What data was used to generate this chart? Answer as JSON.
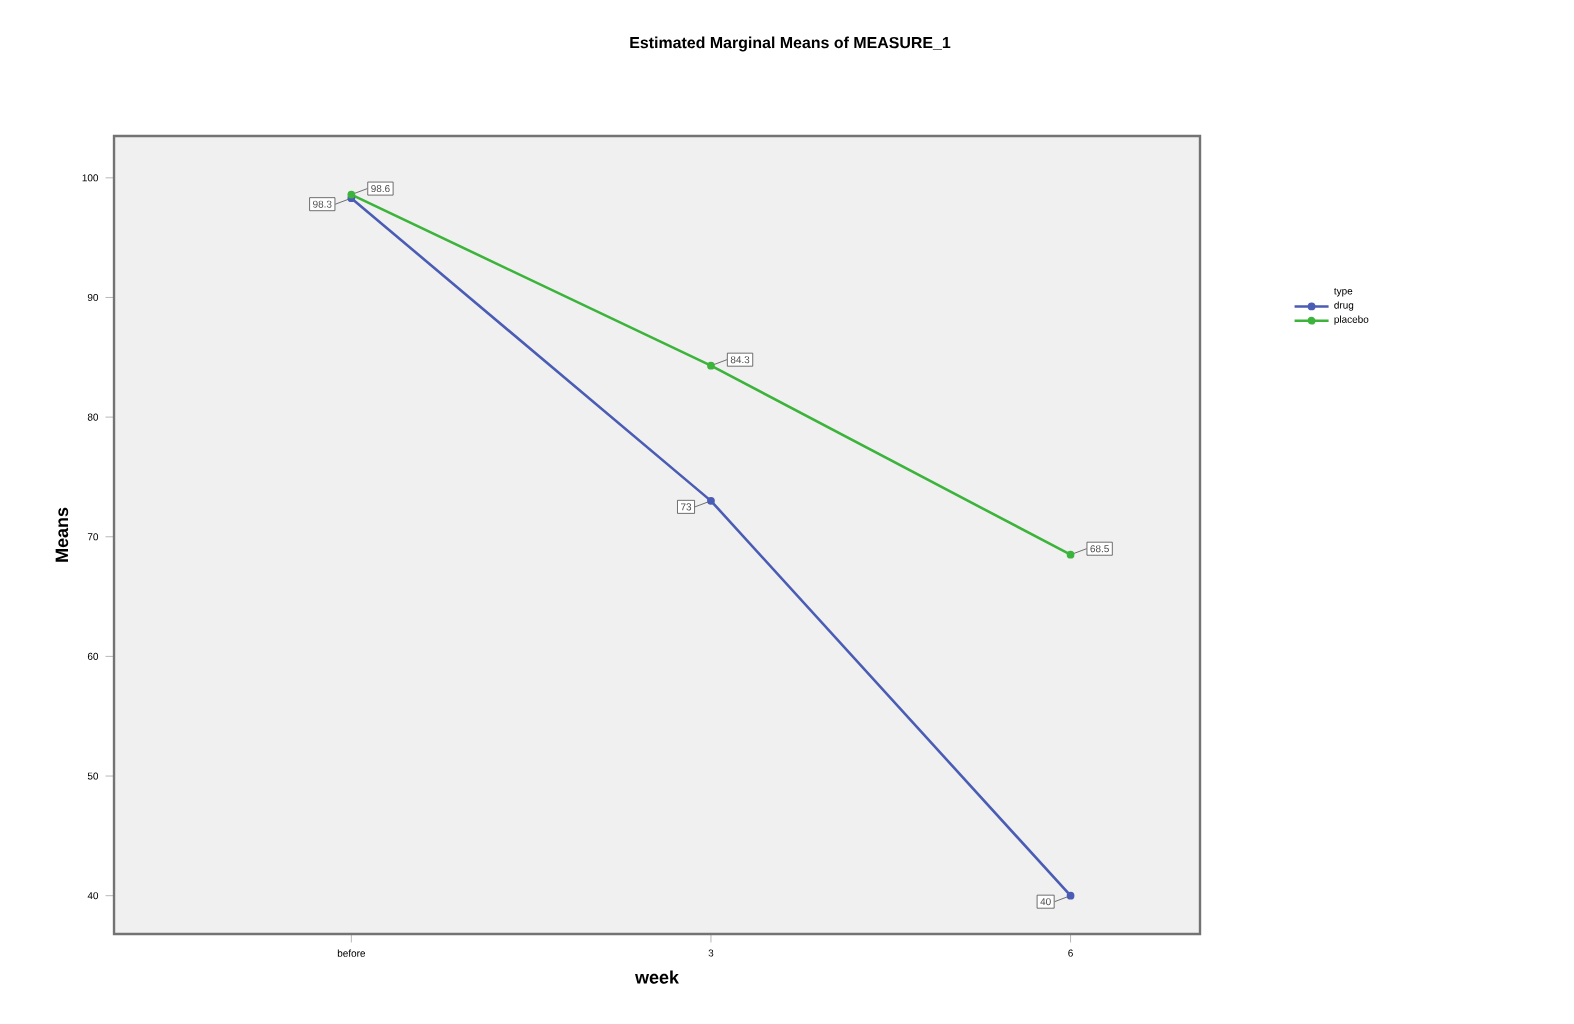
{
  "chart_data": {
    "type": "line",
    "title": "Estimated Marginal Means of MEASURE_1",
    "xlabel": "week",
    "ylabel": "Means",
    "legend_title": "type",
    "categories": [
      "before",
      "3",
      "6"
    ],
    "series": [
      {
        "name": "drug",
        "color": "#4a5cb4",
        "values": [
          98.3,
          73,
          40
        ],
        "value_labels": [
          "98.3",
          "73",
          "40"
        ]
      },
      {
        "name": "placebo",
        "color": "#3cb43c",
        "values": [
          98.6,
          84.3,
          68.5
        ],
        "value_labels": [
          "98.6",
          "84.3",
          "68.5"
        ]
      }
    ],
    "ylim": [
      36.8,
      103.5
    ],
    "yticks": [
      40,
      50,
      60,
      70,
      80,
      90,
      100
    ],
    "grid": false,
    "legend": "top right",
    "marker": "circle",
    "line_style": "solid"
  }
}
